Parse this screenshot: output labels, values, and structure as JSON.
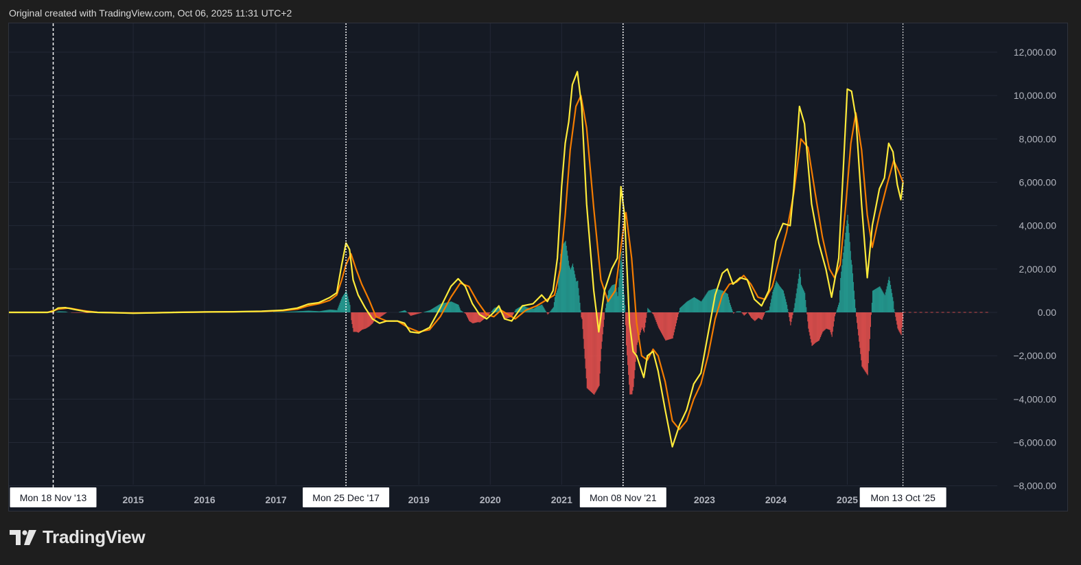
{
  "header": {
    "text": "Original created with TradingView.com, Oct 06, 2025 11:31 UTC+2"
  },
  "brand": {
    "name": "TradingView",
    "icon": "tradingview-logo-icon"
  },
  "colors": {
    "background": "#1e1e1e",
    "plot_bg": "#151a24",
    "grid": "#232836",
    "axis_text": "#b2b5be",
    "fast_line": "#ffeb3b",
    "slow_line": "#f57c00",
    "hist_up": "#26a69a",
    "hist_down": "#ef5350",
    "zero_line": "#c6494d",
    "marker_line": "#ffffff"
  },
  "chart_data": {
    "type": "line",
    "y_ticks": [
      "12,000.00",
      "10,000.00",
      "8,000.00",
      "6,000.00",
      "4,000.00",
      "2,000.00",
      "0.00",
      "−2,000.00",
      "−4,000.00",
      "−6,000.00",
      "−8,000.00"
    ],
    "y_tick_values": [
      12000,
      10000,
      8000,
      6000,
      4000,
      2000,
      0,
      -2000,
      -4000,
      -6000,
      -8000
    ],
    "ylim": [
      -8000,
      12000
    ],
    "x_ticks": [
      {
        "label": "2015",
        "x": 2015.0
      },
      {
        "label": "2016",
        "x": 2016.0
      },
      {
        "label": "2017",
        "x": 2017.0
      },
      {
        "label": "2019",
        "x": 2019.0
      },
      {
        "label": "2020",
        "x": 2020.0
      },
      {
        "label": "2021",
        "x": 2021.0
      },
      {
        "label": "2023",
        "x": 2023.0
      },
      {
        "label": "2024",
        "x": 2024.0
      },
      {
        "label": "2025",
        "x": 2025.0
      }
    ],
    "markers": [
      {
        "label": "Mon 18 Nov '13",
        "x": 2013.88,
        "style": "dashed"
      },
      {
        "label": "Mon 25 Dec '17",
        "x": 2017.98,
        "style": "dotted"
      },
      {
        "label": "Mon 08 Nov '21",
        "x": 2021.86,
        "style": "dotted"
      },
      {
        "label": "Mon 13 Oct '25",
        "x": 2025.78,
        "style": "dotted-thin"
      }
    ],
    "xlim": [
      2013.26,
      2027.1
    ],
    "zero_line_until": 2027.0,
    "series": [
      {
        "role": "fast",
        "values": [
          [
            2013.26,
            0
          ],
          [
            2013.8,
            0
          ],
          [
            2013.88,
            50
          ],
          [
            2013.95,
            200
          ],
          [
            2014.05,
            220
          ],
          [
            2014.2,
            120
          ],
          [
            2014.35,
            30
          ],
          [
            2014.5,
            0
          ],
          [
            2014.8,
            -20
          ],
          [
            2015.0,
            -40
          ],
          [
            2015.3,
            -20
          ],
          [
            2015.6,
            0
          ],
          [
            2016.0,
            20
          ],
          [
            2016.4,
            30
          ],
          [
            2016.8,
            50
          ],
          [
            2017.1,
            100
          ],
          [
            2017.3,
            200
          ],
          [
            2017.45,
            380
          ],
          [
            2017.6,
            450
          ],
          [
            2017.75,
            680
          ],
          [
            2017.85,
            900
          ],
          [
            2017.92,
            2200
          ],
          [
            2017.98,
            3200
          ],
          [
            2018.03,
            2900
          ],
          [
            2018.08,
            1500
          ],
          [
            2018.15,
            800
          ],
          [
            2018.25,
            200
          ],
          [
            2018.35,
            -300
          ],
          [
            2018.45,
            -500
          ],
          [
            2018.55,
            -400
          ],
          [
            2018.7,
            -400
          ],
          [
            2018.8,
            -500
          ],
          [
            2018.88,
            -900
          ],
          [
            2019.0,
            -950
          ],
          [
            2019.15,
            -700
          ],
          [
            2019.3,
            200
          ],
          [
            2019.45,
            1200
          ],
          [
            2019.55,
            1550
          ],
          [
            2019.65,
            1200
          ],
          [
            2019.75,
            400
          ],
          [
            2019.85,
            -100
          ],
          [
            2019.95,
            -300
          ],
          [
            2020.05,
            0
          ],
          [
            2020.12,
            300
          ],
          [
            2020.2,
            -300
          ],
          [
            2020.3,
            -400
          ],
          [
            2020.45,
            300
          ],
          [
            2020.6,
            400
          ],
          [
            2020.72,
            800
          ],
          [
            2020.8,
            500
          ],
          [
            2020.88,
            1000
          ],
          [
            2020.94,
            2500
          ],
          [
            2021.0,
            5800
          ],
          [
            2021.05,
            7800
          ],
          [
            2021.1,
            8800
          ],
          [
            2021.15,
            10500
          ],
          [
            2021.22,
            11100
          ],
          [
            2021.28,
            9500
          ],
          [
            2021.35,
            5000
          ],
          [
            2021.45,
            1000
          ],
          [
            2021.52,
            -900
          ],
          [
            2021.6,
            1000
          ],
          [
            2021.7,
            2000
          ],
          [
            2021.78,
            2500
          ],
          [
            2021.83,
            5800
          ],
          [
            2021.88,
            4500
          ],
          [
            2021.95,
            -500
          ],
          [
            2022.0,
            -1800
          ],
          [
            2022.05,
            -2000
          ],
          [
            2022.15,
            -3000
          ],
          [
            2022.2,
            -2000
          ],
          [
            2022.28,
            -1800
          ],
          [
            2022.35,
            -2700
          ],
          [
            2022.45,
            -4500
          ],
          [
            2022.55,
            -6200
          ],
          [
            2022.65,
            -5200
          ],
          [
            2022.75,
            -4500
          ],
          [
            2022.85,
            -3300
          ],
          [
            2022.95,
            -2800
          ],
          [
            2023.05,
            -1000
          ],
          [
            2023.15,
            800
          ],
          [
            2023.25,
            1800
          ],
          [
            2023.32,
            2000
          ],
          [
            2023.4,
            1300
          ],
          [
            2023.5,
            1600
          ],
          [
            2023.6,
            1500
          ],
          [
            2023.7,
            600
          ],
          [
            2023.8,
            300
          ],
          [
            2023.9,
            1000
          ],
          [
            2024.0,
            3300
          ],
          [
            2024.1,
            4100
          ],
          [
            2024.2,
            4000
          ],
          [
            2024.25,
            5700
          ],
          [
            2024.33,
            9500
          ],
          [
            2024.4,
            8700
          ],
          [
            2024.5,
            5000
          ],
          [
            2024.6,
            3200
          ],
          [
            2024.7,
            2000
          ],
          [
            2024.78,
            700
          ],
          [
            2024.88,
            2500
          ],
          [
            2024.95,
            7000
          ],
          [
            2025.0,
            10300
          ],
          [
            2025.06,
            10200
          ],
          [
            2025.12,
            9000
          ],
          [
            2025.2,
            5000
          ],
          [
            2025.28,
            1600
          ],
          [
            2025.35,
            4000
          ],
          [
            2025.45,
            5700
          ],
          [
            2025.52,
            6200
          ],
          [
            2025.58,
            7800
          ],
          [
            2025.64,
            7400
          ],
          [
            2025.7,
            5900
          ],
          [
            2025.75,
            5200
          ],
          [
            2025.78,
            6000
          ]
        ]
      },
      {
        "role": "slow",
        "values": [
          [
            2013.26,
            0
          ],
          [
            2013.8,
            0
          ],
          [
            2013.95,
            150
          ],
          [
            2014.1,
            200
          ],
          [
            2014.3,
            80
          ],
          [
            2014.5,
            0
          ],
          [
            2014.8,
            -20
          ],
          [
            2015.0,
            -30
          ],
          [
            2015.3,
            -20
          ],
          [
            2015.6,
            0
          ],
          [
            2016.0,
            15
          ],
          [
            2016.4,
            25
          ],
          [
            2016.8,
            40
          ],
          [
            2017.1,
            80
          ],
          [
            2017.3,
            150
          ],
          [
            2017.45,
            300
          ],
          [
            2017.6,
            400
          ],
          [
            2017.75,
            550
          ],
          [
            2017.85,
            800
          ],
          [
            2017.92,
            1500
          ],
          [
            2017.98,
            2200
          ],
          [
            2018.05,
            2700
          ],
          [
            2018.12,
            2000
          ],
          [
            2018.2,
            1300
          ],
          [
            2018.3,
            600
          ],
          [
            2018.4,
            -200
          ],
          [
            2018.55,
            -400
          ],
          [
            2018.7,
            -400
          ],
          [
            2018.85,
            -700
          ],
          [
            2019.0,
            -900
          ],
          [
            2019.15,
            -800
          ],
          [
            2019.3,
            -200
          ],
          [
            2019.45,
            700
          ],
          [
            2019.58,
            1350
          ],
          [
            2019.7,
            1200
          ],
          [
            2019.82,
            500
          ],
          [
            2019.95,
            -100
          ],
          [
            2020.05,
            -200
          ],
          [
            2020.15,
            100
          ],
          [
            2020.25,
            -100
          ],
          [
            2020.35,
            -300
          ],
          [
            2020.5,
            100
          ],
          [
            2020.65,
            300
          ],
          [
            2020.8,
            600
          ],
          [
            2020.9,
            800
          ],
          [
            2020.98,
            2000
          ],
          [
            2021.05,
            4500
          ],
          [
            2021.12,
            7500
          ],
          [
            2021.2,
            9500
          ],
          [
            2021.27,
            10000
          ],
          [
            2021.35,
            8500
          ],
          [
            2021.45,
            4800
          ],
          [
            2021.55,
            1500
          ],
          [
            2021.65,
            500
          ],
          [
            2021.75,
            1000
          ],
          [
            2021.85,
            3500
          ],
          [
            2021.9,
            4600
          ],
          [
            2021.98,
            2500
          ],
          [
            2022.05,
            -500
          ],
          [
            2022.12,
            -2000
          ],
          [
            2022.2,
            -2200
          ],
          [
            2022.28,
            -1700
          ],
          [
            2022.35,
            -2000
          ],
          [
            2022.45,
            -3200
          ],
          [
            2022.55,
            -5000
          ],
          [
            2022.65,
            -5400
          ],
          [
            2022.75,
            -5000
          ],
          [
            2022.85,
            -4000
          ],
          [
            2022.95,
            -3300
          ],
          [
            2023.05,
            -2000
          ],
          [
            2023.15,
            -300
          ],
          [
            2023.25,
            800
          ],
          [
            2023.35,
            1300
          ],
          [
            2023.45,
            1400
          ],
          [
            2023.55,
            1700
          ],
          [
            2023.65,
            1300
          ],
          [
            2023.75,
            700
          ],
          [
            2023.85,
            600
          ],
          [
            2023.95,
            1200
          ],
          [
            2024.05,
            2500
          ],
          [
            2024.15,
            3700
          ],
          [
            2024.25,
            5500
          ],
          [
            2024.35,
            8000
          ],
          [
            2024.45,
            7600
          ],
          [
            2024.55,
            5500
          ],
          [
            2024.65,
            3500
          ],
          [
            2024.75,
            2000
          ],
          [
            2024.82,
            1600
          ],
          [
            2024.9,
            2200
          ],
          [
            2024.98,
            5000
          ],
          [
            2025.05,
            7800
          ],
          [
            2025.12,
            9200
          ],
          [
            2025.2,
            7500
          ],
          [
            2025.28,
            4500
          ],
          [
            2025.35,
            3000
          ],
          [
            2025.45,
            4500
          ],
          [
            2025.55,
            5800
          ],
          [
            2025.65,
            7000
          ],
          [
            2025.72,
            6500
          ],
          [
            2025.78,
            6000
          ]
        ]
      }
    ],
    "histogram_source": "fast_minus_slow_x3"
  }
}
